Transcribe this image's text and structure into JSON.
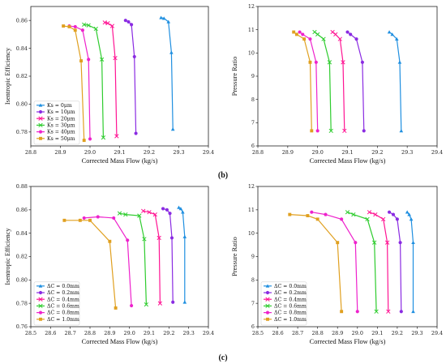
{
  "panel_labels": {
    "b": "(b)",
    "c": "(c)"
  },
  "chart_data": [
    {
      "type": "line",
      "panel": "b-left",
      "xlabel": "Corrected Mass Flow (kg/s)",
      "ylabel": "Isentropic Efficiency",
      "xlim": [
        28.8,
        29.4
      ],
      "ylim": [
        0.77,
        0.87
      ],
      "xticks": [
        "28.8",
        "28.9",
        "29.0",
        "29.1",
        "29.2",
        "29.3",
        "29.4"
      ],
      "yticks": [
        "0.78",
        "0.80",
        "0.82",
        "0.84",
        "0.86"
      ],
      "legend_position": "lower-left",
      "series": [
        {
          "name": "Ks = 0μm",
          "color": "#1f8fe0",
          "marker": "triangle",
          "x": [
            29.24,
            29.25,
            29.265,
            29.275,
            29.28
          ],
          "y": [
            0.862,
            0.8615,
            0.859,
            0.837,
            0.782
          ]
        },
        {
          "name": "Ks = 10μm",
          "color": "#8a2be2",
          "marker": "circle",
          "x": [
            29.12,
            29.13,
            29.14,
            29.15,
            29.155
          ],
          "y": [
            0.86,
            0.859,
            0.857,
            0.834,
            0.779
          ]
        },
        {
          "name": "Ks = 20μm",
          "color": "#ff1493",
          "marker": "x",
          "x": [
            29.05,
            29.06,
            29.075,
            29.085,
            29.09
          ],
          "y": [
            0.8585,
            0.858,
            0.856,
            0.833,
            0.777
          ]
        },
        {
          "name": "Ks = 30μm",
          "color": "#2ecc2e",
          "marker": "x",
          "x": [
            28.98,
            28.995,
            29.02,
            29.04,
            29.045
          ],
          "y": [
            0.857,
            0.8565,
            0.854,
            0.832,
            0.776
          ]
        },
        {
          "name": "Ks = 40μm",
          "color": "#ee22cc",
          "marker": "circle",
          "x": [
            28.93,
            28.95,
            28.975,
            28.995,
            29.0
          ],
          "y": [
            0.856,
            0.8555,
            0.853,
            0.832,
            0.775
          ]
        },
        {
          "name": "Ks = 50μm",
          "color": "#e0a020",
          "marker": "square",
          "x": [
            28.91,
            28.93,
            28.95,
            28.97,
            28.98
          ],
          "y": [
            0.856,
            0.8555,
            0.853,
            0.831,
            0.774
          ]
        }
      ]
    },
    {
      "type": "line",
      "panel": "b-right",
      "xlabel": "Corrected Mass Flow (kg/s)",
      "ylabel": "Pressure Ratio",
      "xlim": [
        28.8,
        29.4
      ],
      "ylim": [
        6,
        12
      ],
      "xticks": [
        "28.8",
        "28.9",
        "29.0",
        "29.1",
        "29.2",
        "29.3",
        "29.4"
      ],
      "yticks": [
        "6",
        "7",
        "8",
        "9",
        "10",
        "11",
        "12"
      ],
      "series": [
        {
          "name": "Ks = 0μm",
          "color": "#1f8fe0",
          "marker": "triangle",
          "x": [
            29.24,
            29.25,
            29.265,
            29.275,
            29.28
          ],
          "y": [
            10.9,
            10.8,
            10.6,
            9.6,
            6.65
          ]
        },
        {
          "name": "Ks = 10μm",
          "color": "#8a2be2",
          "marker": "circle",
          "x": [
            29.1,
            29.11,
            29.13,
            29.15,
            29.155
          ],
          "y": [
            10.9,
            10.8,
            10.6,
            9.6,
            6.65
          ]
        },
        {
          "name": "Ks = 20μm",
          "color": "#ff1493",
          "marker": "x",
          "x": [
            29.05,
            29.06,
            29.075,
            29.085,
            29.09
          ],
          "y": [
            10.9,
            10.8,
            10.6,
            9.6,
            6.65
          ]
        },
        {
          "name": "Ks = 30μm",
          "color": "#2ecc2e",
          "marker": "x",
          "x": [
            28.99,
            29.0,
            29.02,
            29.04,
            29.045
          ],
          "y": [
            10.9,
            10.8,
            10.6,
            9.6,
            6.65
          ]
        },
        {
          "name": "Ks = 40μm",
          "color": "#ee22cc",
          "marker": "circle",
          "x": [
            28.94,
            28.95,
            28.975,
            28.995,
            29.0
          ],
          "y": [
            10.9,
            10.8,
            10.6,
            9.6,
            6.65
          ]
        },
        {
          "name": "Ks = 50μm",
          "color": "#e0a020",
          "marker": "square",
          "x": [
            28.92,
            28.93,
            28.955,
            28.975,
            28.98
          ],
          "y": [
            10.9,
            10.8,
            10.6,
            9.6,
            6.65
          ]
        }
      ]
    },
    {
      "type": "line",
      "panel": "c-left",
      "xlabel": "Corrected Mass Flow (kg/s)",
      "ylabel": "Isentropic Efficiency",
      "xlim": [
        28.5,
        29.4
      ],
      "ylim": [
        0.76,
        0.88
      ],
      "xticks": [
        "28.5",
        "28.6",
        "28.7",
        "28.8",
        "28.9",
        "29.0",
        "29.1",
        "29.2",
        "29.3",
        "29.4"
      ],
      "yticks": [
        "0.76",
        "0.78",
        "0.80",
        "0.82",
        "0.84",
        "0.86",
        "0.88"
      ],
      "legend_position": "lower-left",
      "series": [
        {
          "name": "ΔC = 0.0mm",
          "color": "#1f8fe0",
          "marker": "triangle",
          "x": [
            29.25,
            29.26,
            29.27,
            29.28,
            29.28
          ],
          "y": [
            0.862,
            0.861,
            0.858,
            0.837,
            0.781
          ]
        },
        {
          "name": "ΔC = 0.2mm",
          "color": "#8a2be2",
          "marker": "circle",
          "x": [
            29.17,
            29.19,
            29.205,
            29.215,
            29.22
          ],
          "y": [
            0.861,
            0.86,
            0.857,
            0.836,
            0.781
          ]
        },
        {
          "name": "ΔC = 0.4mm",
          "color": "#ff1493",
          "marker": "x",
          "x": [
            29.07,
            29.1,
            29.13,
            29.15,
            29.155
          ],
          "y": [
            0.859,
            0.858,
            0.856,
            0.836,
            0.78
          ]
        },
        {
          "name": "ΔC = 0.6mm",
          "color": "#2ecc2e",
          "marker": "x",
          "x": [
            28.95,
            28.98,
            29.05,
            29.075,
            29.085
          ],
          "y": [
            0.857,
            0.856,
            0.855,
            0.835,
            0.779
          ]
        },
        {
          "name": "ΔC = 0.8mm",
          "color": "#ee22cc",
          "marker": "circle",
          "x": [
            28.77,
            28.84,
            28.92,
            28.99,
            29.01
          ],
          "y": [
            0.853,
            0.854,
            0.853,
            0.834,
            0.778
          ]
        },
        {
          "name": "ΔC = 1.0mm",
          "color": "#e0a020",
          "marker": "square",
          "x": [
            28.67,
            28.75,
            28.8,
            28.9,
            28.93
          ],
          "y": [
            0.851,
            0.851,
            0.851,
            0.833,
            0.776
          ]
        }
      ]
    },
    {
      "type": "line",
      "panel": "c-right",
      "xlabel": "Corrected Mass Flow (kg/s)",
      "ylabel": "Pressure Ratio",
      "xlim": [
        28.5,
        29.4
      ],
      "ylim": [
        6,
        12
      ],
      "xticks": [
        "28.5",
        "28.6",
        "28.7",
        "28.8",
        "28.9",
        "29.0",
        "29.1",
        "29.2",
        "29.3",
        "29.4"
      ],
      "yticks": [
        "6",
        "7",
        "8",
        "9",
        "10",
        "11",
        "12"
      ],
      "legend_position": "lower-left",
      "series": [
        {
          "name": "ΔC = 0.0mm",
          "color": "#1f8fe0",
          "marker": "triangle",
          "x": [
            29.25,
            29.26,
            29.27,
            29.28,
            29.28
          ],
          "y": [
            10.9,
            10.8,
            10.6,
            9.6,
            6.65
          ]
        },
        {
          "name": "ΔC = 0.2mm",
          "color": "#8a2be2",
          "marker": "circle",
          "x": [
            29.16,
            29.18,
            29.2,
            29.215,
            29.22
          ],
          "y": [
            10.9,
            10.8,
            10.6,
            9.6,
            6.65
          ]
        },
        {
          "name": "ΔC = 0.4mm",
          "color": "#ff1493",
          "marker": "x",
          "x": [
            29.06,
            29.09,
            29.13,
            29.15,
            29.155
          ],
          "y": [
            10.9,
            10.8,
            10.6,
            9.6,
            6.65
          ]
        },
        {
          "name": "ΔC = 0.6mm",
          "color": "#2ecc2e",
          "marker": "x",
          "x": [
            28.95,
            28.98,
            29.05,
            29.085,
            29.095
          ],
          "y": [
            10.9,
            10.8,
            10.6,
            9.6,
            6.65
          ]
        },
        {
          "name": "ΔC = 0.8mm",
          "color": "#ee22cc",
          "marker": "circle",
          "x": [
            28.77,
            28.84,
            28.92,
            28.99,
            29.0
          ],
          "y": [
            10.9,
            10.8,
            10.6,
            9.6,
            6.65
          ]
        },
        {
          "name": "ΔC = 1.0mm",
          "color": "#e0a020",
          "marker": "square",
          "x": [
            28.66,
            28.75,
            28.8,
            28.9,
            28.92
          ],
          "y": [
            10.8,
            10.75,
            10.6,
            9.6,
            6.65
          ]
        }
      ]
    }
  ]
}
